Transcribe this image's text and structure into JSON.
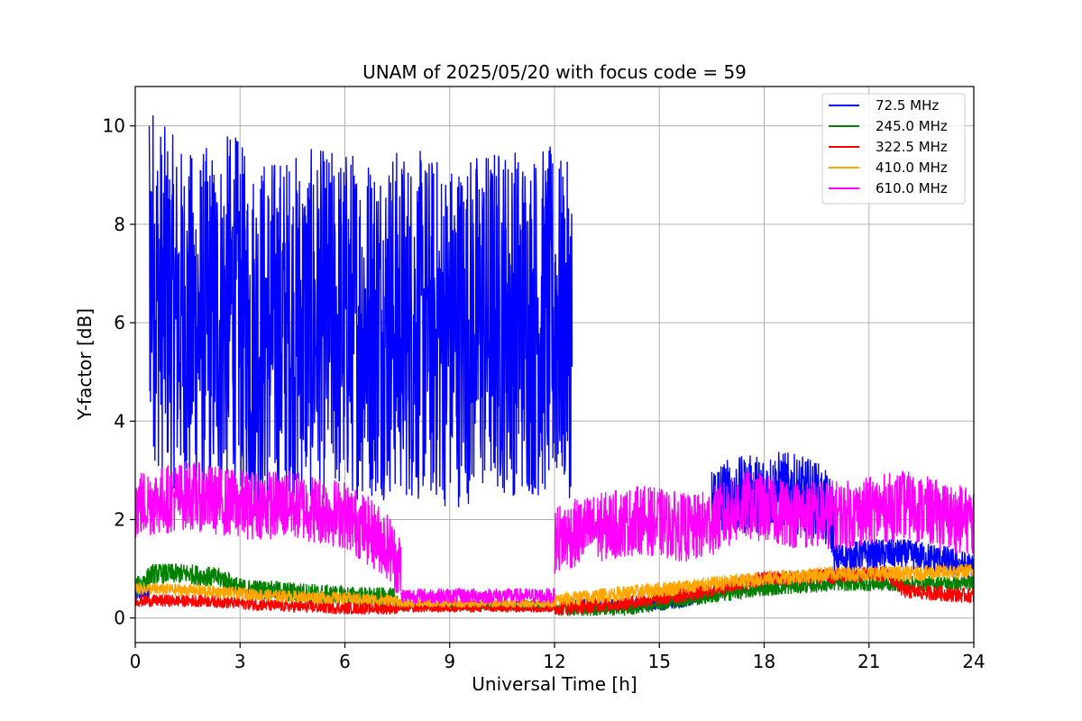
{
  "chart_data": {
    "type": "line",
    "title": "UNAM of 2025/05/20 with focus code = 59",
    "xlabel": "Universal Time [h]",
    "ylabel": "Y-factor [dB]",
    "xlim": [
      0,
      24
    ],
    "ylim": [
      -0.5,
      10.8
    ],
    "xticks": [
      0,
      3,
      6,
      9,
      12,
      15,
      18,
      21,
      24
    ],
    "xtick_labels": [
      "0",
      "3",
      "6",
      "9",
      "12",
      "15",
      "18",
      "21",
      "24"
    ],
    "yticks": [
      0,
      2,
      4,
      6,
      8,
      10
    ],
    "ytick_labels": [
      "0",
      "2",
      "4",
      "6",
      "8",
      "10"
    ],
    "grid": true,
    "legend_position": "top-right",
    "series": [
      {
        "name": " 72.5 MHz",
        "color": "#0000ff",
        "segments": [
          {
            "x": [
              0,
              0.4
            ],
            "y": [
              0.5,
              0.5
            ],
            "noise": 0.15
          },
          {
            "x": [
              0.4,
              0.6,
              1.5,
              2.5,
              2.8,
              3.2,
              4.5,
              6,
              7.5,
              9,
              10.5,
              11.5,
              12.1
            ],
            "y": [
              7.5,
              6.6,
              5.9,
              6.1,
              6.4,
              5.8,
              5.9,
              6.0,
              6.0,
              5.8,
              6.1,
              6.0,
              6.0
            ],
            "noise": 3.6
          },
          {
            "x": [
              12.1,
              12.5
            ],
            "y": [
              6.0,
              5.8
            ],
            "noise": 3.4
          },
          {
            "x": [
              12.5,
              14,
              15.5,
              16.5
            ],
            "y": [
              0.3,
              0.25,
              0.3,
              0.5
            ],
            "noise": 0.12
          },
          {
            "x": [
              16.5,
              17.5,
              18.5,
              19.5,
              20
            ],
            "y": [
              2.4,
              2.5,
              2.6,
              2.4,
              2.0
            ],
            "noise": 0.8
          },
          {
            "x": [
              20,
              21,
              22,
              23,
              24
            ],
            "y": [
              1.2,
              1.3,
              1.3,
              1.2,
              1.0
            ],
            "noise": 0.3
          }
        ]
      },
      {
        "name": "245.0 MHz",
        "color": "#008000",
        "segments": [
          {
            "x": [
              0,
              0.5,
              1.5,
              2.5,
              3,
              4,
              6,
              7.5
            ],
            "y": [
              0.6,
              0.9,
              0.9,
              0.8,
              0.6,
              0.55,
              0.45,
              0.4
            ],
            "noise": 0.2
          },
          {
            "x": [
              7.5,
              12
            ],
            "y": [
              0.25,
              0.25
            ],
            "noise": 0.1
          },
          {
            "x": [
              12,
              14,
              16,
              18,
              20,
              22,
              24
            ],
            "y": [
              0.2,
              0.2,
              0.4,
              0.6,
              0.7,
              0.7,
              0.7
            ],
            "noise": 0.15
          }
        ]
      },
      {
        "name": "322.5 MHz",
        "color": "#ff0000",
        "segments": [
          {
            "x": [
              0,
              2,
              4,
              6,
              7.5
            ],
            "y": [
              0.35,
              0.35,
              0.25,
              0.2,
              0.2
            ],
            "noise": 0.12
          },
          {
            "x": [
              7.5,
              12
            ],
            "y": [
              0.2,
              0.2
            ],
            "noise": 0.08
          },
          {
            "x": [
              12,
              14,
              16,
              18,
              20,
              21.5,
              22,
              24
            ],
            "y": [
              0.2,
              0.3,
              0.5,
              0.8,
              0.85,
              0.9,
              0.55,
              0.45
            ],
            "noise": 0.15
          }
        ]
      },
      {
        "name": "410.0 MHz",
        "color": "#ffa500",
        "segments": [
          {
            "x": [
              0,
              2,
              4,
              6,
              7.5
            ],
            "y": [
              0.6,
              0.55,
              0.45,
              0.4,
              0.35
            ],
            "noise": 0.12
          },
          {
            "x": [
              7.5,
              12
            ],
            "y": [
              0.3,
              0.3
            ],
            "noise": 0.08
          },
          {
            "x": [
              12,
              14,
              16,
              18,
              20,
              22,
              24
            ],
            "y": [
              0.35,
              0.5,
              0.65,
              0.8,
              0.9,
              0.9,
              0.95
            ],
            "noise": 0.15
          }
        ]
      },
      {
        "name": "610.0 MHz",
        "color": "#ff00ff",
        "segments": [
          {
            "x": [
              0,
              1.5,
              3,
              4.5,
              6,
              7.2,
              7.6
            ],
            "y": [
              2.3,
              2.5,
              2.3,
              2.3,
              2.1,
              1.5,
              1.0
            ],
            "noise": 0.7
          },
          {
            "x": [
              7.6,
              12
            ],
            "y": [
              0.45,
              0.45
            ],
            "noise": 0.15
          },
          {
            "x": [
              12,
              13,
              14.5,
              16,
              17.5,
              19,
              20.5,
              22,
              23.5,
              24
            ],
            "y": [
              1.6,
              1.8,
              2.0,
              1.8,
              2.3,
              2.1,
              2.1,
              2.3,
              2.0,
              2.0
            ],
            "noise": 0.7
          }
        ]
      }
    ]
  }
}
